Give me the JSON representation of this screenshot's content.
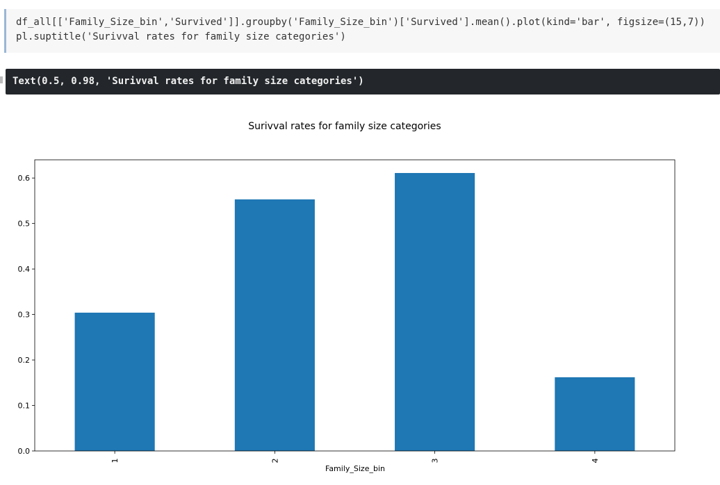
{
  "code_cell": {
    "lines": [
      "df_all[['Family_Size_bin','Survived']].groupby('Family_Size_bin')['Survived'].mean().plot(kind='bar', figsize=(15,7))",
      "pl.suptitle('Surivval rates for family size categories')"
    ]
  },
  "output": {
    "text": "Text(0.5, 0.98, 'Surivval rates for family size categories')"
  },
  "colors": {
    "bar": "#1f77b4",
    "code_bg": "#f7f7f7",
    "output_bg": "#23272b"
  },
  "chart_data": {
    "type": "bar",
    "title": "Surivval rates for family size categories",
    "xlabel": "Family_Size_bin",
    "ylabel": "",
    "categories": [
      "1",
      "2",
      "3",
      "4"
    ],
    "values": [
      0.304,
      0.553,
      0.611,
      0.162
    ],
    "ylim": [
      0,
      0.64
    ],
    "yticks": [
      "0.0",
      "0.1",
      "0.2",
      "0.3",
      "0.4",
      "0.5",
      "0.6"
    ],
    "grid": false,
    "legend": "none"
  }
}
